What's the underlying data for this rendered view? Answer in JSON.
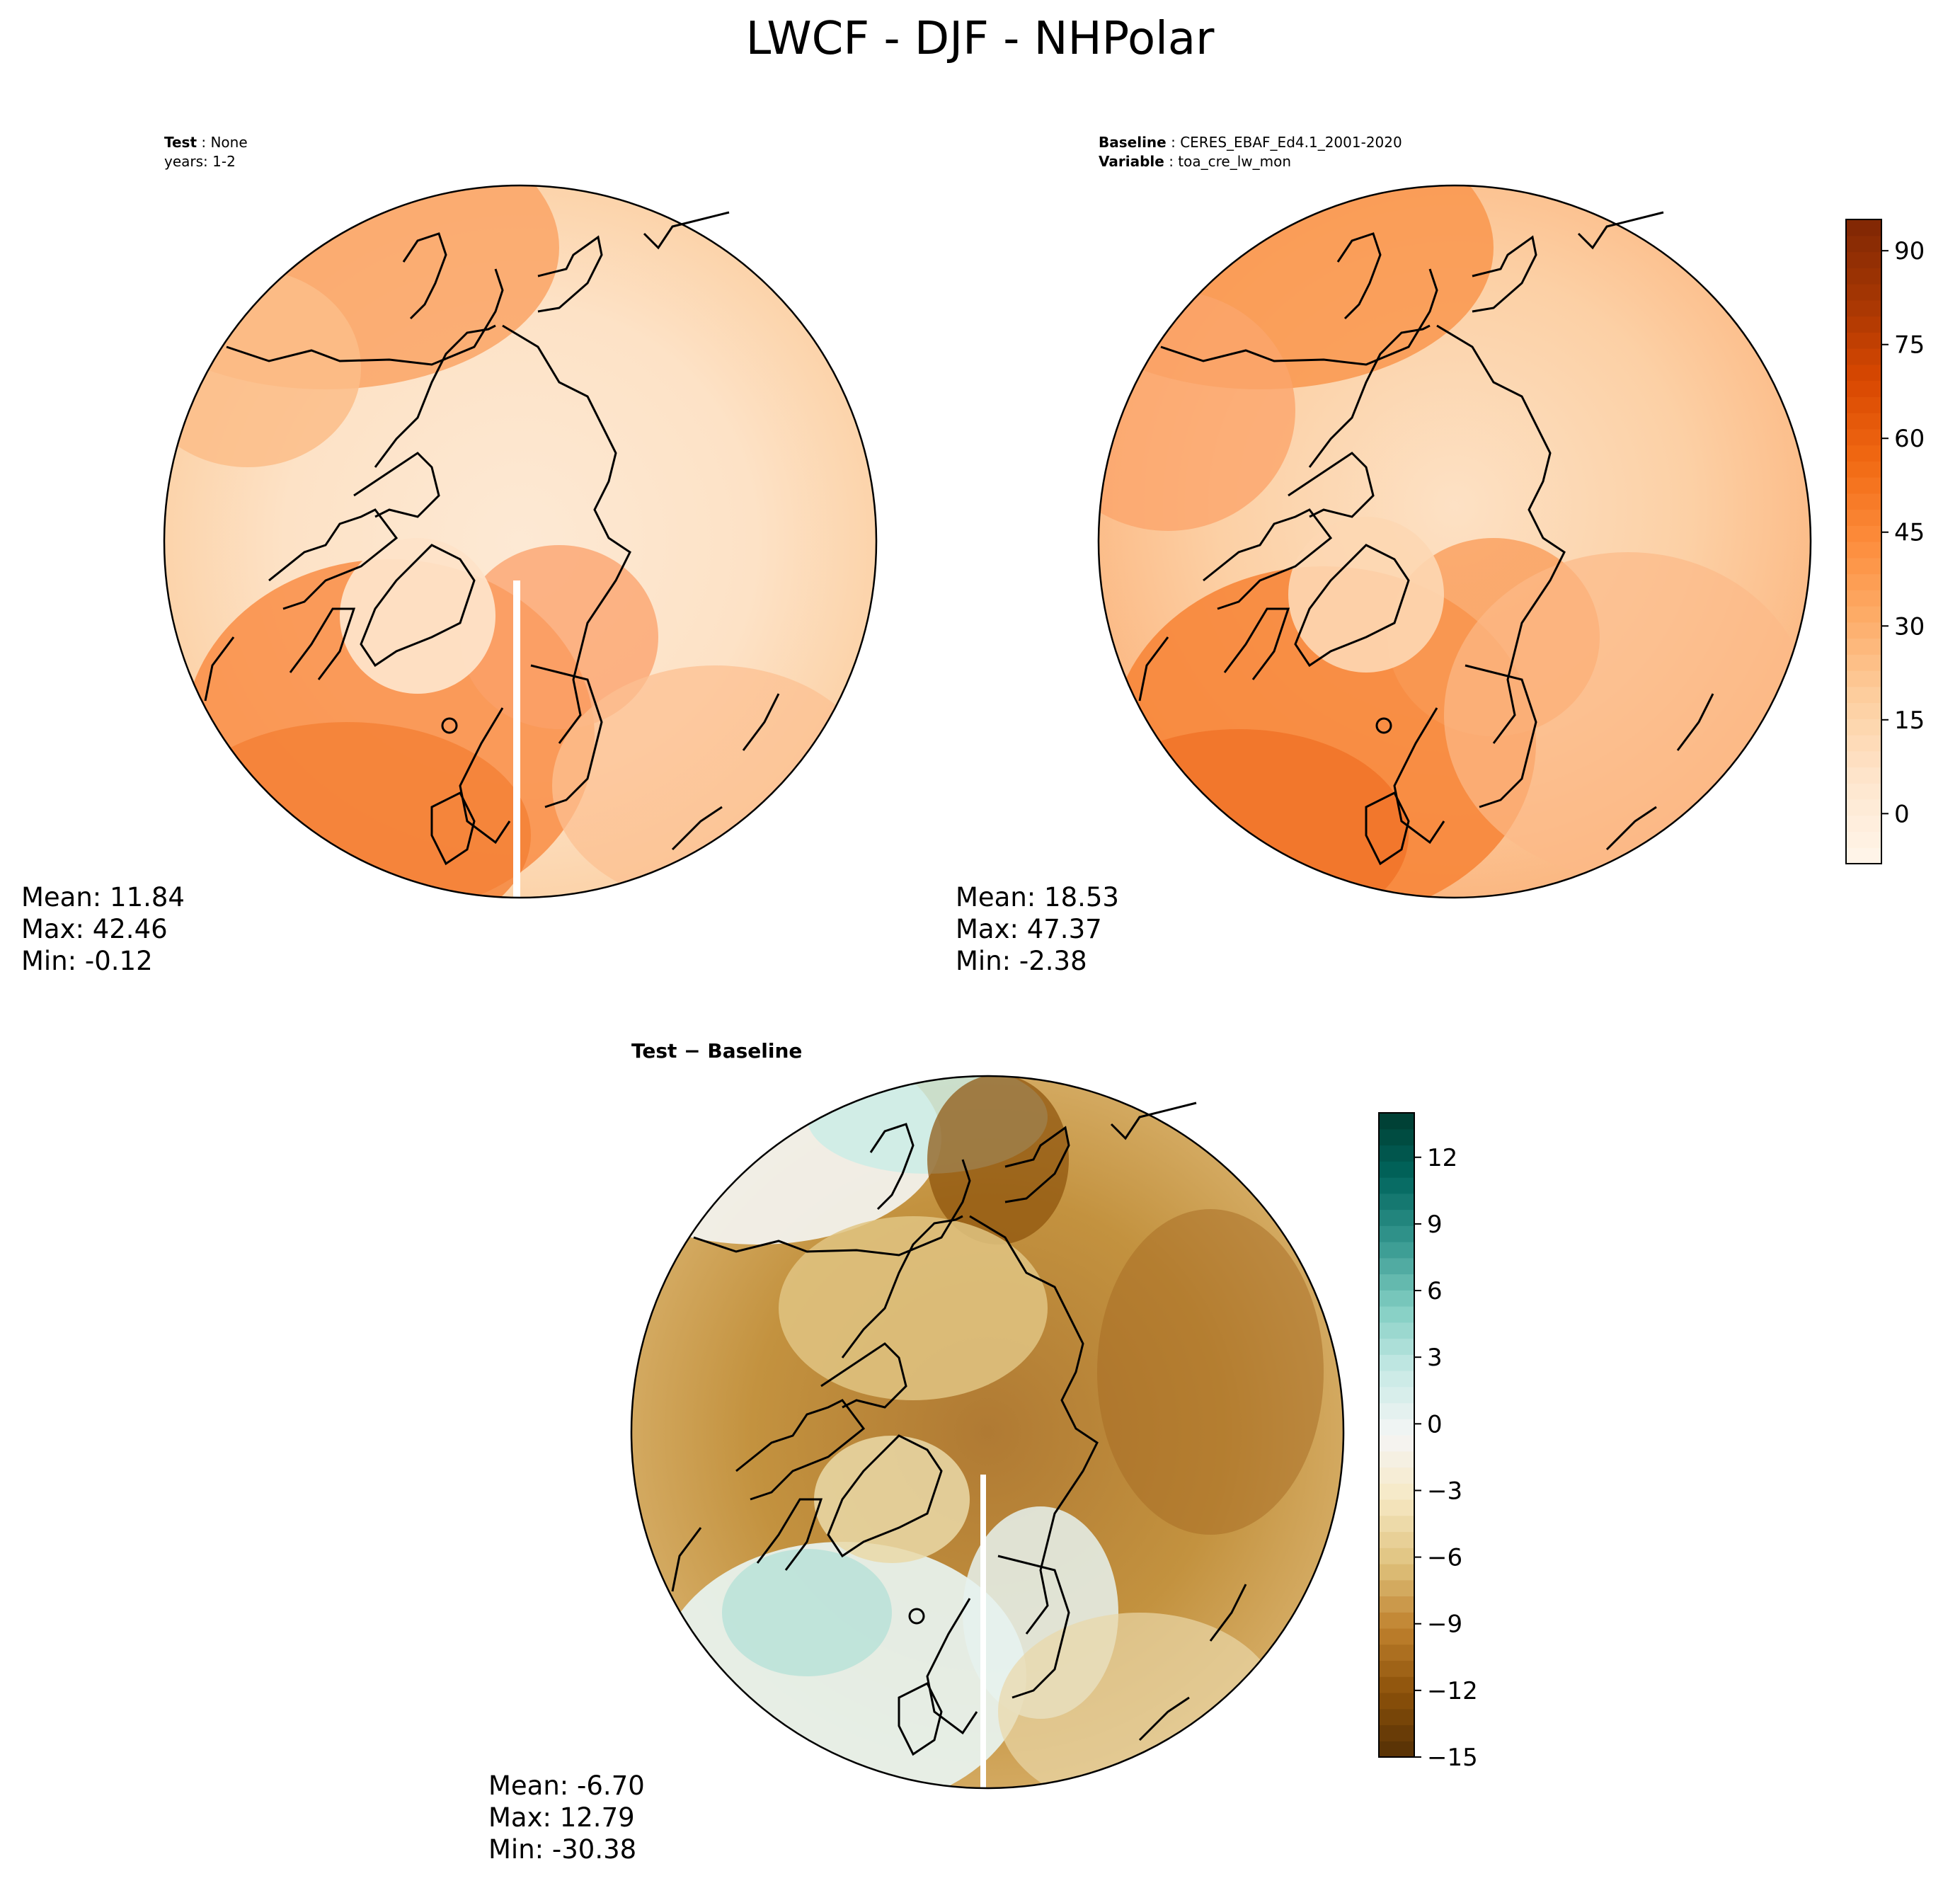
{
  "title": "LWCF - DJF - NHPolar",
  "panels": {
    "test": {
      "line1_label": "Test",
      "line1_value": "None",
      "line2": "years: 1-2",
      "mean": "Mean: 11.84",
      "max": "Max: 42.46",
      "min": "Min: -0.12"
    },
    "baseline": {
      "line1_label": "Baseline",
      "line1_value": "CERES_EBAF_Ed4.1_2001-2020",
      "line2_label": "Variable",
      "line2_value": "toa_cre_lw_mon",
      "mean": "Mean: 18.53",
      "max": "Max: 47.37",
      "min": "Min: -2.38"
    },
    "diff": {
      "title": "Test − Baseline",
      "mean": "Mean: -6.70",
      "max": "Max: 12.79",
      "min": "Min: -30.38"
    }
  },
  "chart_data": [
    {
      "type": "heatmap",
      "name": "Test",
      "projection": "north-polar-stereographic",
      "stats": {
        "mean": 11.84,
        "max": 42.46,
        "min": -0.12
      },
      "colormap": "Oranges",
      "value_range": [
        -10,
        95
      ]
    },
    {
      "type": "heatmap",
      "name": "Baseline",
      "projection": "north-polar-stereographic",
      "stats": {
        "mean": 18.53,
        "max": 47.37,
        "min": -2.38
      },
      "colormap": "Oranges",
      "value_range": [
        -10,
        95
      ],
      "colorbar": {
        "ticks": [
          0,
          15,
          30,
          45,
          60,
          75,
          90
        ],
        "tick_labels": [
          "0",
          "15",
          "30",
          "45",
          "60",
          "75",
          "90"
        ],
        "range": [
          -8,
          95
        ]
      }
    },
    {
      "type": "heatmap",
      "name": "Test − Baseline",
      "projection": "north-polar-stereographic",
      "stats": {
        "mean": -6.7,
        "max": 12.79,
        "min": -30.38
      },
      "colormap": "BrBG",
      "colorbar": {
        "ticks": [
          -15,
          -12,
          -9,
          -6,
          -3,
          0,
          3,
          6,
          9,
          12
        ],
        "tick_labels": [
          "−15",
          "−12",
          "−9",
          "−6",
          "−3",
          "0",
          "3",
          "6",
          "9",
          "12"
        ],
        "range": [
          -15,
          14
        ]
      }
    }
  ],
  "colors": {
    "oranges": [
      "#fff5eb",
      "#fee6ce",
      "#fdd0a2",
      "#fdae6b",
      "#fd8d3c",
      "#f16913",
      "#d94801",
      "#a63603",
      "#7f2704"
    ],
    "brbg": [
      "#543005",
      "#8c510a",
      "#bf812d",
      "#dfc27d",
      "#f6e8c3",
      "#f5f5f5",
      "#c7eae5",
      "#80cdc1",
      "#35978f",
      "#01665e",
      "#003c30"
    ]
  }
}
